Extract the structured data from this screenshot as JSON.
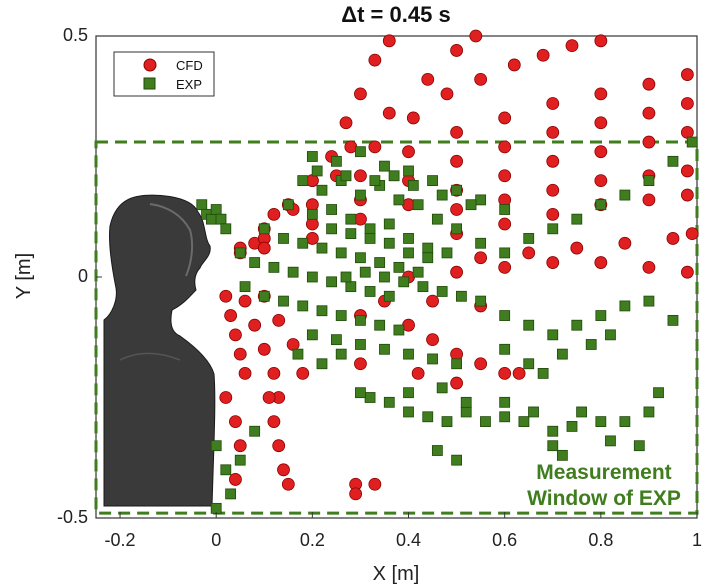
{
  "chart_data": {
    "type": "scatter",
    "title": "Δt = 0.45 s",
    "xlabel": "X [m]",
    "ylabel": "Y [m]",
    "xlim": [
      -0.25,
      1.0
    ],
    "ylim": [
      -0.5,
      0.5
    ],
    "x_ticks": [
      "-0.2",
      "0",
      "0.2",
      "0.4",
      "0.6",
      "0.8",
      "1"
    ],
    "y_ticks": [
      "0.5",
      "0",
      "-0.5"
    ],
    "legend_position": "top-left",
    "grid": false,
    "series": [
      {
        "name": "CFD",
        "marker": "circle",
        "color": "#e02020",
        "edge_color": "#8a0000",
        "points": [
          [
            0.05,
            0.05
          ],
          [
            0.1,
            0.1
          ],
          [
            0.15,
            0.15
          ],
          [
            0.2,
            0.2
          ],
          [
            0.24,
            0.25
          ],
          [
            0.27,
            0.32
          ],
          [
            0.3,
            0.38
          ],
          [
            0.33,
            0.45
          ],
          [
            0.36,
            0.49
          ],
          [
            0.05,
            0.06
          ],
          [
            0.12,
            0.13
          ],
          [
            0.2,
            0.2
          ],
          [
            0.28,
            0.27
          ],
          [
            0.36,
            0.34
          ],
          [
            0.44,
            0.41
          ],
          [
            0.5,
            0.47
          ],
          [
            0.54,
            0.5
          ],
          [
            0.08,
            0.07
          ],
          [
            0.16,
            0.14
          ],
          [
            0.25,
            0.21
          ],
          [
            0.33,
            0.27
          ],
          [
            0.41,
            0.33
          ],
          [
            0.48,
            0.38
          ],
          [
            0.55,
            0.41
          ],
          [
            0.62,
            0.44
          ],
          [
            0.68,
            0.46
          ],
          [
            0.74,
            0.48
          ],
          [
            0.8,
            0.49
          ],
          [
            0.1,
            0.08
          ],
          [
            0.2,
            0.15
          ],
          [
            0.3,
            0.21
          ],
          [
            0.4,
            0.26
          ],
          [
            0.5,
            0.3
          ],
          [
            0.6,
            0.33
          ],
          [
            0.7,
            0.36
          ],
          [
            0.8,
            0.38
          ],
          [
            0.9,
            0.4
          ],
          [
            0.98,
            0.42
          ],
          [
            0.1,
            0.06
          ],
          [
            0.2,
            0.11
          ],
          [
            0.3,
            0.16
          ],
          [
            0.4,
            0.2
          ],
          [
            0.5,
            0.24
          ],
          [
            0.6,
            0.27
          ],
          [
            0.7,
            0.3
          ],
          [
            0.8,
            0.32
          ],
          [
            0.9,
            0.34
          ],
          [
            0.98,
            0.36
          ],
          [
            0.2,
            0.08
          ],
          [
            0.3,
            0.12
          ],
          [
            0.4,
            0.15
          ],
          [
            0.5,
            0.18
          ],
          [
            0.6,
            0.21
          ],
          [
            0.7,
            0.24
          ],
          [
            0.8,
            0.26
          ],
          [
            0.9,
            0.28
          ],
          [
            0.98,
            0.3
          ],
          [
            0.5,
            0.14
          ],
          [
            0.6,
            0.16
          ],
          [
            0.7,
            0.18
          ],
          [
            0.8,
            0.2
          ],
          [
            0.9,
            0.21
          ],
          [
            0.98,
            0.22
          ],
          [
            0.5,
            0.09
          ],
          [
            0.6,
            0.11
          ],
          [
            0.7,
            0.13
          ],
          [
            0.8,
            0.15
          ],
          [
            0.9,
            0.16
          ],
          [
            0.98,
            0.17
          ],
          [
            0.55,
            0.04
          ],
          [
            0.65,
            0.05
          ],
          [
            0.75,
            0.06
          ],
          [
            0.85,
            0.07
          ],
          [
            0.95,
            0.08
          ],
          [
            0.99,
            0.09
          ],
          [
            0.4,
            0.0
          ],
          [
            0.5,
            0.01
          ],
          [
            0.6,
            0.02
          ],
          [
            0.7,
            0.03
          ],
          [
            0.8,
            0.03
          ],
          [
            0.9,
            0.02
          ],
          [
            0.98,
            0.01
          ],
          [
            0.02,
            -0.04
          ],
          [
            0.03,
            -0.08
          ],
          [
            0.04,
            -0.12
          ],
          [
            0.05,
            -0.16
          ],
          [
            0.06,
            -0.2
          ],
          [
            0.06,
            -0.05
          ],
          [
            0.08,
            -0.1
          ],
          [
            0.1,
            -0.15
          ],
          [
            0.12,
            -0.2
          ],
          [
            0.13,
            -0.25
          ],
          [
            0.1,
            -0.04
          ],
          [
            0.13,
            -0.09
          ],
          [
            0.16,
            -0.14
          ],
          [
            0.18,
            -0.2
          ],
          [
            0.02,
            -0.25
          ],
          [
            0.04,
            -0.3
          ],
          [
            0.05,
            -0.35
          ],
          [
            0.04,
            -0.42
          ],
          [
            0.11,
            -0.25
          ],
          [
            0.12,
            -0.3
          ],
          [
            0.13,
            -0.35
          ],
          [
            0.14,
            -0.4
          ],
          [
            0.15,
            -0.43
          ],
          [
            0.29,
            -0.43
          ],
          [
            0.29,
            -0.45
          ],
          [
            0.33,
            -0.43
          ],
          [
            0.3,
            -0.08
          ],
          [
            0.4,
            -0.1
          ],
          [
            0.45,
            -0.13
          ],
          [
            0.5,
            -0.16
          ],
          [
            0.55,
            -0.18
          ],
          [
            0.6,
            -0.2
          ],
          [
            0.63,
            -0.2
          ],
          [
            0.35,
            -0.05
          ],
          [
            0.45,
            -0.05
          ],
          [
            0.55,
            -0.06
          ],
          [
            0.3,
            -0.18
          ],
          [
            0.42,
            -0.2
          ],
          [
            0.5,
            -0.22
          ]
        ]
      },
      {
        "name": "EXP",
        "marker": "square",
        "color": "#3f7d1e",
        "edge_color": "#1f4a0c",
        "points": [
          [
            0.2,
            0.25
          ],
          [
            0.25,
            0.24
          ],
          [
            0.3,
            0.26
          ],
          [
            0.35,
            0.23
          ],
          [
            0.4,
            0.22
          ],
          [
            0.45,
            0.2
          ],
          [
            0.5,
            0.18
          ],
          [
            0.55,
            0.16
          ],
          [
            0.6,
            0.14
          ],
          [
            0.18,
            0.2
          ],
          [
            0.22,
            0.18
          ],
          [
            0.26,
            0.2
          ],
          [
            0.3,
            0.17
          ],
          [
            0.34,
            0.19
          ],
          [
            0.38,
            0.16
          ],
          [
            0.42,
            0.15
          ],
          [
            0.46,
            0.12
          ],
          [
            0.5,
            0.1
          ],
          [
            0.15,
            0.15
          ],
          [
            0.2,
            0.13
          ],
          [
            0.24,
            0.14
          ],
          [
            0.28,
            0.12
          ],
          [
            0.32,
            0.1
          ],
          [
            0.36,
            0.11
          ],
          [
            0.4,
            0.08
          ],
          [
            0.44,
            0.06
          ],
          [
            0.48,
            0.05
          ],
          [
            0.1,
            0.1
          ],
          [
            0.14,
            0.08
          ],
          [
            0.18,
            0.07
          ],
          [
            0.22,
            0.06
          ],
          [
            0.26,
            0.05
          ],
          [
            0.3,
            0.04
          ],
          [
            0.34,
            0.03
          ],
          [
            0.38,
            0.02
          ],
          [
            0.42,
            0.01
          ],
          [
            0.05,
            0.05
          ],
          [
            0.08,
            0.03
          ],
          [
            0.12,
            0.02
          ],
          [
            0.16,
            0.01
          ],
          [
            0.2,
            0.0
          ],
          [
            0.24,
            -0.01
          ],
          [
            0.28,
            -0.02
          ],
          [
            0.32,
            -0.03
          ],
          [
            0.36,
            -0.04
          ],
          [
            0.06,
            -0.02
          ],
          [
            0.1,
            -0.04
          ],
          [
            0.14,
            -0.05
          ],
          [
            0.18,
            -0.06
          ],
          [
            0.22,
            -0.07
          ],
          [
            0.26,
            -0.08
          ],
          [
            0.3,
            -0.09
          ],
          [
            0.34,
            -0.1
          ],
          [
            0.38,
            -0.11
          ],
          [
            0.2,
            -0.12
          ],
          [
            0.25,
            -0.13
          ],
          [
            0.3,
            -0.14
          ],
          [
            0.35,
            -0.15
          ],
          [
            0.4,
            -0.16
          ],
          [
            0.45,
            -0.17
          ],
          [
            0.5,
            -0.18
          ],
          [
            0.32,
            -0.25
          ],
          [
            0.36,
            -0.26
          ],
          [
            0.4,
            -0.28
          ],
          [
            0.44,
            -0.29
          ],
          [
            0.48,
            -0.3
          ],
          [
            0.52,
            -0.28
          ],
          [
            0.56,
            -0.3
          ],
          [
            0.6,
            -0.29
          ],
          [
            0.64,
            -0.3
          ],
          [
            0.7,
            -0.32
          ],
          [
            0.74,
            -0.31
          ],
          [
            0.8,
            -0.3
          ],
          [
            0.46,
            -0.36
          ],
          [
            0.5,
            -0.38
          ],
          [
            0.7,
            -0.35
          ],
          [
            0.72,
            -0.37
          ],
          [
            0.55,
            0.07
          ],
          [
            0.6,
            0.05
          ],
          [
            0.65,
            0.08
          ],
          [
            0.7,
            0.1
          ],
          [
            0.75,
            0.12
          ],
          [
            0.8,
            0.15
          ],
          [
            0.85,
            0.17
          ],
          [
            0.9,
            0.2
          ],
          [
            0.95,
            0.24
          ],
          [
            0.99,
            0.28
          ],
          [
            0.55,
            -0.05
          ],
          [
            0.6,
            -0.08
          ],
          [
            0.65,
            -0.1
          ],
          [
            0.7,
            -0.12
          ],
          [
            0.75,
            -0.1
          ],
          [
            0.8,
            -0.08
          ],
          [
            0.85,
            -0.06
          ],
          [
            0.9,
            -0.05
          ],
          [
            0.95,
            -0.09
          ],
          [
            0.6,
            -0.15
          ],
          [
            0.65,
            -0.18
          ],
          [
            0.68,
            -0.2
          ],
          [
            0.72,
            -0.16
          ],
          [
            0.78,
            -0.14
          ],
          [
            0.82,
            -0.12
          ],
          [
            -0.03,
            0.15
          ],
          [
            -0.02,
            0.13
          ],
          [
            -0.01,
            0.12
          ],
          [
            0.0,
            0.14
          ],
          [
            0.01,
            0.12
          ],
          [
            0.02,
            0.1
          ],
          [
            0.0,
            -0.35
          ],
          [
            0.02,
            -0.4
          ],
          [
            0.03,
            -0.45
          ],
          [
            0.0,
            -0.48
          ],
          [
            0.05,
            -0.38
          ],
          [
            0.08,
            -0.32
          ],
          [
            0.17,
            -0.16
          ],
          [
            0.22,
            -0.18
          ],
          [
            0.26,
            -0.16
          ],
          [
            0.3,
            -0.24
          ],
          [
            0.4,
            -0.24
          ],
          [
            0.47,
            -0.23
          ],
          [
            0.52,
            -0.26
          ],
          [
            0.6,
            -0.26
          ],
          [
            0.66,
            -0.28
          ],
          [
            0.76,
            -0.28
          ],
          [
            0.9,
            -0.28
          ],
          [
            0.92,
            -0.24
          ],
          [
            0.85,
            -0.3
          ],
          [
            0.88,
            -0.35
          ],
          [
            0.82,
            -0.34
          ],
          [
            0.27,
            0.0
          ],
          [
            0.31,
            0.01
          ],
          [
            0.35,
            0.0
          ],
          [
            0.39,
            -0.01
          ],
          [
            0.43,
            -0.02
          ],
          [
            0.47,
            -0.03
          ],
          [
            0.51,
            -0.04
          ],
          [
            0.24,
            0.1
          ],
          [
            0.28,
            0.09
          ],
          [
            0.32,
            0.08
          ],
          [
            0.36,
            0.07
          ],
          [
            0.4,
            0.05
          ],
          [
            0.44,
            0.04
          ],
          [
            0.21,
            0.22
          ],
          [
            0.27,
            0.21
          ],
          [
            0.33,
            0.2
          ],
          [
            0.37,
            0.21
          ],
          [
            0.41,
            0.19
          ],
          [
            0.47,
            0.17
          ],
          [
            0.53,
            0.15
          ]
        ]
      }
    ],
    "annotations": [
      {
        "text": "Measurement",
        "color": "#3f7d1e"
      },
      {
        "text": "Window of EXP",
        "color": "#3f7d1e"
      }
    ],
    "measurement_window": {
      "x": [
        -0.25,
        1.0
      ],
      "y": [
        -0.49,
        0.28
      ],
      "color": "#3f7d1e",
      "style": "dashed"
    }
  }
}
